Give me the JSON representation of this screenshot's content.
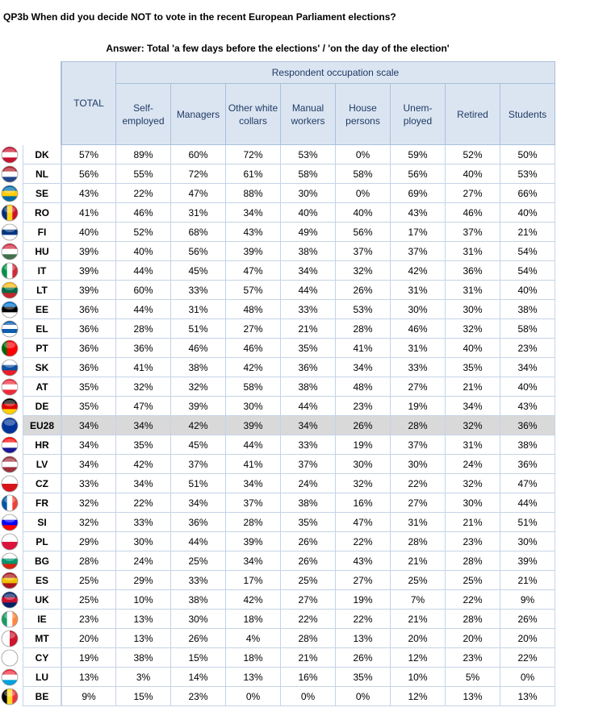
{
  "title": "QP3b When did you decide NOT to vote in the recent European Parliament elections?",
  "subtitle": "Answer: Total 'a few days before the elections' / 'on the day of the election'",
  "table": {
    "group_header": "Respondent occupation scale",
    "columns": [
      "TOTAL",
      "Self-\nemployed",
      "Managers",
      "Other white\ncollars",
      "Manual\nworkers",
      "House\npersons",
      "Unem-\nployed",
      "Retired",
      "Students"
    ],
    "rows": [
      {
        "country": "DK",
        "cells": [
          "57%",
          "89%",
          "60%",
          "72%",
          "53%",
          "0%",
          "59%",
          "52%",
          "50%"
        ]
      },
      {
        "country": "NL",
        "cells": [
          "56%",
          "55%",
          "72%",
          "61%",
          "58%",
          "58%",
          "56%",
          "40%",
          "53%"
        ]
      },
      {
        "country": "SE",
        "cells": [
          "43%",
          "22%",
          "47%",
          "88%",
          "30%",
          "0%",
          "69%",
          "27%",
          "66%"
        ]
      },
      {
        "country": "RO",
        "cells": [
          "41%",
          "46%",
          "31%",
          "34%",
          "40%",
          "40%",
          "43%",
          "46%",
          "40%"
        ]
      },
      {
        "country": "FI",
        "cells": [
          "40%",
          "52%",
          "68%",
          "43%",
          "49%",
          "56%",
          "17%",
          "37%",
          "21%"
        ]
      },
      {
        "country": "HU",
        "cells": [
          "39%",
          "40%",
          "56%",
          "39%",
          "38%",
          "37%",
          "37%",
          "31%",
          "54%"
        ]
      },
      {
        "country": "IT",
        "cells": [
          "39%",
          "44%",
          "45%",
          "47%",
          "34%",
          "32%",
          "42%",
          "36%",
          "54%"
        ]
      },
      {
        "country": "LT",
        "cells": [
          "39%",
          "60%",
          "33%",
          "57%",
          "44%",
          "26%",
          "31%",
          "31%",
          "40%"
        ]
      },
      {
        "country": "EE",
        "cells": [
          "36%",
          "44%",
          "31%",
          "48%",
          "33%",
          "53%",
          "30%",
          "30%",
          "38%"
        ]
      },
      {
        "country": "EL",
        "cells": [
          "36%",
          "28%",
          "51%",
          "27%",
          "21%",
          "28%",
          "46%",
          "32%",
          "58%"
        ]
      },
      {
        "country": "PT",
        "cells": [
          "36%",
          "36%",
          "46%",
          "46%",
          "35%",
          "41%",
          "31%",
          "40%",
          "23%"
        ]
      },
      {
        "country": "SK",
        "cells": [
          "36%",
          "41%",
          "38%",
          "42%",
          "36%",
          "34%",
          "33%",
          "35%",
          "34%"
        ]
      },
      {
        "country": "AT",
        "cells": [
          "35%",
          "32%",
          "32%",
          "58%",
          "38%",
          "48%",
          "27%",
          "21%",
          "40%"
        ]
      },
      {
        "country": "DE",
        "cells": [
          "35%",
          "47%",
          "39%",
          "30%",
          "44%",
          "23%",
          "19%",
          "34%",
          "43%"
        ]
      },
      {
        "country": "EU28",
        "cells": [
          "34%",
          "34%",
          "42%",
          "39%",
          "34%",
          "26%",
          "28%",
          "32%",
          "36%"
        ]
      },
      {
        "country": "HR",
        "cells": [
          "34%",
          "35%",
          "45%",
          "44%",
          "33%",
          "19%",
          "37%",
          "31%",
          "38%"
        ]
      },
      {
        "country": "LV",
        "cells": [
          "34%",
          "42%",
          "37%",
          "41%",
          "37%",
          "30%",
          "30%",
          "24%",
          "36%"
        ]
      },
      {
        "country": "CZ",
        "cells": [
          "33%",
          "34%",
          "51%",
          "34%",
          "24%",
          "32%",
          "22%",
          "32%",
          "47%"
        ]
      },
      {
        "country": "FR",
        "cells": [
          "32%",
          "22%",
          "34%",
          "37%",
          "38%",
          "16%",
          "27%",
          "30%",
          "44%"
        ]
      },
      {
        "country": "SI",
        "cells": [
          "32%",
          "33%",
          "36%",
          "28%",
          "35%",
          "47%",
          "31%",
          "21%",
          "51%"
        ]
      },
      {
        "country": "PL",
        "cells": [
          "29%",
          "30%",
          "44%",
          "39%",
          "26%",
          "22%",
          "28%",
          "23%",
          "30%"
        ]
      },
      {
        "country": "BG",
        "cells": [
          "28%",
          "24%",
          "25%",
          "34%",
          "26%",
          "43%",
          "21%",
          "28%",
          "39%"
        ]
      },
      {
        "country": "ES",
        "cells": [
          "25%",
          "29%",
          "33%",
          "17%",
          "25%",
          "27%",
          "25%",
          "25%",
          "21%"
        ]
      },
      {
        "country": "UK",
        "cells": [
          "25%",
          "10%",
          "38%",
          "42%",
          "27%",
          "19%",
          "7%",
          "22%",
          "9%"
        ]
      },
      {
        "country": "IE",
        "cells": [
          "23%",
          "13%",
          "30%",
          "18%",
          "22%",
          "22%",
          "21%",
          "28%",
          "26%"
        ]
      },
      {
        "country": "MT",
        "cells": [
          "20%",
          "13%",
          "26%",
          "4%",
          "28%",
          "13%",
          "20%",
          "20%",
          "20%"
        ]
      },
      {
        "country": "CY",
        "cells": [
          "19%",
          "38%",
          "15%",
          "18%",
          "21%",
          "26%",
          "12%",
          "23%",
          "22%"
        ]
      },
      {
        "country": "LU",
        "cells": [
          "13%",
          "3%",
          "14%",
          "13%",
          "16%",
          "35%",
          "10%",
          "5%",
          "0%"
        ]
      },
      {
        "country": "BE",
        "cells": [
          "9%",
          "15%",
          "23%",
          "0%",
          "0%",
          "0%",
          "12%",
          "13%",
          "13%"
        ]
      }
    ]
  }
}
